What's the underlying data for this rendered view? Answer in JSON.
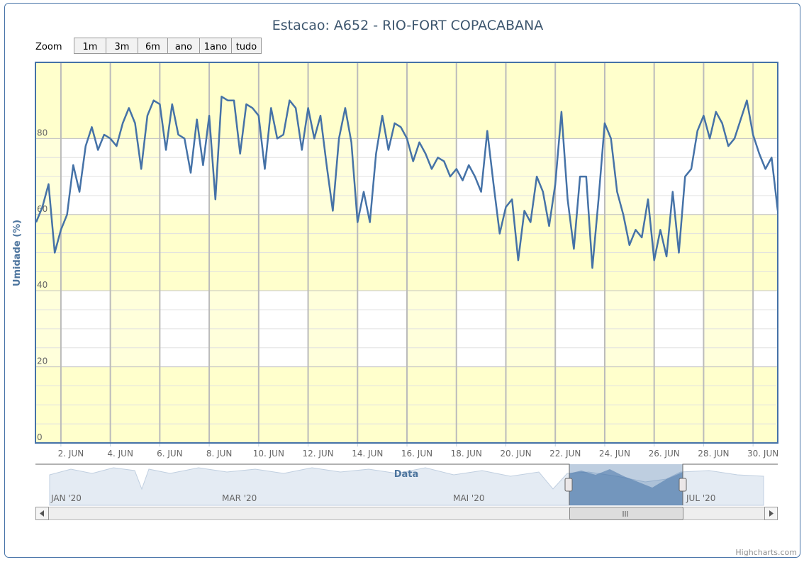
{
  "chart_data": {
    "type": "line",
    "title": "Estacao: A652 - RIO-FORT COPACABANA",
    "x_label": "Data",
    "y_label": "Umidade (%)",
    "color": "#4572a7",
    "grid": true,
    "xlim": [
      0.97,
      31.0
    ],
    "ylim": [
      0,
      100
    ],
    "xticks": [
      {
        "value": 2,
        "label": "2. JUN"
      },
      {
        "value": 4,
        "label": "4. JUN"
      },
      {
        "value": 6,
        "label": "6. JUN"
      },
      {
        "value": 8,
        "label": "8. JUN"
      },
      {
        "value": 10,
        "label": "10. JUN"
      },
      {
        "value": 12,
        "label": "12. JUN"
      },
      {
        "value": 14,
        "label": "14. JUN"
      },
      {
        "value": 16,
        "label": "16. JUN"
      },
      {
        "value": 18,
        "label": "18. JUN"
      },
      {
        "value": 20,
        "label": "20. JUN"
      },
      {
        "value": 22,
        "label": "22. JUN"
      },
      {
        "value": 24,
        "label": "24. JUN"
      },
      {
        "value": 26,
        "label": "26. JUN"
      },
      {
        "value": 28,
        "label": "28. JUN"
      },
      {
        "value": 30,
        "label": "30. JUN"
      }
    ],
    "yticks": [
      0,
      20,
      40,
      60,
      80
    ],
    "x": [
      1,
      1.25,
      1.5,
      1.75,
      2,
      2.25,
      2.5,
      2.75,
      3,
      3.25,
      3.5,
      3.75,
      4,
      4.25,
      4.5,
      4.75,
      5,
      5.25,
      5.5,
      5.75,
      6,
      6.25,
      6.5,
      6.75,
      7,
      7.25,
      7.5,
      7.75,
      8,
      8.25,
      8.5,
      8.75,
      9,
      9.25,
      9.5,
      9.75,
      10,
      10.25,
      10.5,
      10.75,
      11,
      11.25,
      11.5,
      11.75,
      12,
      12.25,
      12.5,
      12.75,
      13,
      13.25,
      13.5,
      13.75,
      14,
      14.25,
      14.5,
      14.75,
      15,
      15.25,
      15.5,
      15.75,
      16,
      16.25,
      16.5,
      16.75,
      17,
      17.25,
      17.5,
      17.75,
      18,
      18.25,
      18.5,
      18.75,
      19,
      19.25,
      19.5,
      19.75,
      20,
      20.25,
      20.5,
      20.75,
      21,
      21.25,
      21.5,
      21.75,
      22,
      22.25,
      22.5,
      22.75,
      23,
      23.25,
      23.5,
      23.75,
      24,
      24.25,
      24.5,
      24.75,
      25,
      25.25,
      25.5,
      25.75,
      26,
      26.25,
      26.5,
      26.75,
      27,
      27.25,
      27.5,
      27.75,
      28,
      28.25,
      28.5,
      28.75,
      29,
      29.25,
      29.5,
      29.75,
      30,
      30.25,
      30.5,
      30.75,
      31
    ],
    "values": [
      58,
      62,
      68,
      50,
      56,
      60,
      73,
      66,
      78,
      83,
      77,
      81,
      80,
      78,
      84,
      88,
      84,
      72,
      86,
      90,
      89,
      77,
      89,
      81,
      80,
      71,
      85,
      73,
      86,
      64,
      91,
      90,
      90,
      76,
      89,
      88,
      86,
      72,
      88,
      80,
      81,
      90,
      88,
      77,
      88,
      80,
      86,
      73,
      61,
      80,
      88,
      79,
      58,
      66,
      58,
      76,
      86,
      77,
      84,
      83,
      80,
      74,
      79,
      76,
      72,
      75,
      74,
      70,
      72,
      69,
      73,
      70,
      66,
      82,
      68,
      55,
      62,
      64,
      48,
      61,
      58,
      70,
      66,
      57,
      68,
      87,
      64,
      51,
      70,
      70,
      46,
      64,
      84,
      80,
      66,
      60,
      52,
      56,
      54,
      64,
      48,
      56,
      49,
      66,
      50,
      70,
      72,
      82,
      86,
      80,
      87,
      84,
      78,
      80,
      85,
      90,
      81,
      76,
      72,
      75,
      61
    ]
  },
  "zoom": {
    "label": "Zoom",
    "buttons": [
      "1m",
      "3m",
      "6m",
      "ano",
      "1ano",
      "tudo"
    ]
  },
  "navigator": {
    "labels": [
      "JAN '20",
      "MAR '20",
      "MAI '20",
      "JUL '20"
    ]
  },
  "credits": "Highcharts.com"
}
